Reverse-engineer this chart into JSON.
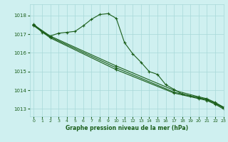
{
  "xlabel": "Graphe pression niveau de la mer (hPa)",
  "ylim": [
    1012.6,
    1018.6
  ],
  "xlim": [
    -0.5,
    23
  ],
  "yticks": [
    1013,
    1014,
    1015,
    1016,
    1017,
    1018
  ],
  "xticks": [
    0,
    1,
    2,
    3,
    4,
    5,
    6,
    7,
    8,
    9,
    10,
    11,
    12,
    13,
    14,
    15,
    16,
    17,
    18,
    19,
    20,
    21,
    22,
    23
  ],
  "bg_color": "#cff0f0",
  "grid_color": "#a8d8d8",
  "line_color": "#1a5e1a",
  "lines": [
    {
      "x": [
        0,
        1,
        2,
        3,
        4,
        5,
        6,
        7,
        8,
        9,
        10,
        11,
        12,
        13,
        14,
        15,
        16,
        17,
        18,
        19,
        20,
        21,
        22,
        23
      ],
      "y": [
        1017.55,
        1017.1,
        1016.9,
        1017.05,
        1017.1,
        1017.15,
        1017.45,
        1017.8,
        1018.05,
        1018.1,
        1017.85,
        1016.55,
        1015.95,
        1015.5,
        1015.0,
        1014.85,
        1014.3,
        1014.05,
        1013.8,
        1013.7,
        1013.6,
        1013.5,
        1013.3,
        1013.1
      ]
    },
    {
      "x": [
        0,
        2,
        10,
        17,
        20,
        21,
        22,
        23
      ],
      "y": [
        1017.5,
        1016.9,
        1015.3,
        1014.0,
        1013.65,
        1013.55,
        1013.35,
        1013.1
      ]
    },
    {
      "x": [
        0,
        2,
        10,
        17,
        20,
        21,
        22,
        23
      ],
      "y": [
        1017.5,
        1016.85,
        1015.2,
        1013.9,
        1013.6,
        1013.5,
        1013.3,
        1013.05
      ]
    },
    {
      "x": [
        0,
        2,
        10,
        17,
        20,
        21,
        22,
        23
      ],
      "y": [
        1017.45,
        1016.8,
        1015.1,
        1013.85,
        1013.55,
        1013.45,
        1013.25,
        1013.0
      ]
    }
  ]
}
